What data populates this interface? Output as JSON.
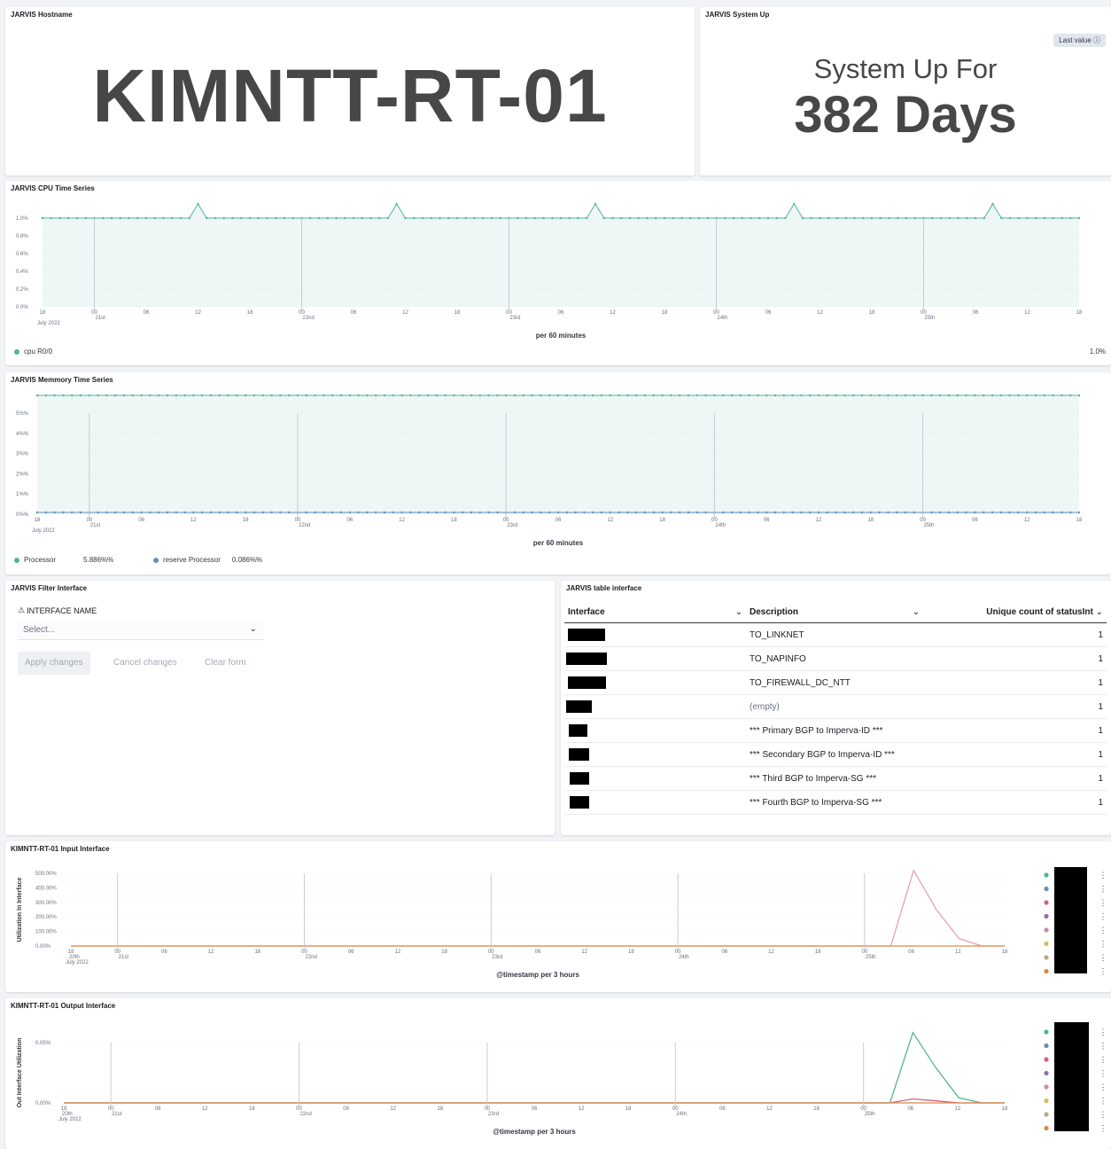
{
  "hostname_panel": {
    "title": "JARVIS Hostname",
    "value": "KIMNTT-RT-01"
  },
  "uptime_panel": {
    "title": "JARVIS System Up",
    "badge": "Last value",
    "label": "System Up For",
    "value": "382 Days"
  },
  "cpu_panel": {
    "title": "JARVIS CPU Time Series",
    "xlabel": "per 60 minutes",
    "y_ticks": [
      "1.0%",
      "0.8%",
      "0.6%",
      "0.4%",
      "0.2%",
      "0.0%"
    ],
    "x_ticks": [
      "18",
      "00",
      "06",
      "12",
      "18",
      "00",
      "06",
      "12",
      "18",
      "00",
      "06",
      "12",
      "18",
      "00",
      "06",
      "12",
      "18",
      "00",
      "06",
      "12",
      "18"
    ],
    "x_subticks": [
      "21st",
      "22nd",
      "23rd",
      "24th",
      "25th"
    ],
    "x_month": "July 2022",
    "legend_name": "cpu R0/0",
    "legend_value": "1.0%"
  },
  "mem_panel": {
    "title": "JARVIS Memmory Time Series",
    "xlabel": "per 60 minutes",
    "y_ticks": [
      "5%%",
      "4%%",
      "3%%",
      "2%%",
      "1%%",
      "0%%"
    ],
    "x_ticks": [
      "18",
      "00",
      "06",
      "12",
      "18",
      "00",
      "06",
      "12",
      "18",
      "00",
      "06",
      "12",
      "18",
      "00",
      "06",
      "12",
      "18",
      "00",
      "06",
      "12",
      "18"
    ],
    "x_subticks": [
      "21st",
      "22nd",
      "23rd",
      "24th",
      "25th"
    ],
    "x_month": "July 2022",
    "legend": [
      {
        "name": "Processor",
        "value": "5.886%%",
        "color": "#54b399"
      },
      {
        "name": "reserve Processor",
        "value": "0.086%%",
        "color": "#6092c0"
      }
    ]
  },
  "filter_panel": {
    "title": "JARVIS Filter Interface",
    "field_label": "INTERFACE NAME",
    "placeholder": "Select...",
    "apply": "Apply changes",
    "cancel": "Cancel changes",
    "clear": "Clear form"
  },
  "table_panel": {
    "title": "JARVIS table interface",
    "headers": [
      "Interface",
      "Description",
      "Unique count of statusInt"
    ],
    "rows": [
      {
        "description": "TO_LINKNET",
        "count": "1"
      },
      {
        "description": "TO_NAPINFO",
        "count": "1"
      },
      {
        "description": "TO_FIREWALL_DC_NTT",
        "count": "1"
      },
      {
        "description": "(empty)",
        "count": "1"
      },
      {
        "description": "*** Primary BGP to Imperva-ID ***",
        "count": "1"
      },
      {
        "description": "*** Secondary BGP to Imperva-ID ***",
        "count": "1"
      },
      {
        "description": "*** Third BGP to Imperva-SG ***",
        "count": "1"
      },
      {
        "description": "*** Fourth BGP to Imperva-SG ***",
        "count": "1"
      }
    ]
  },
  "input_panel": {
    "title": "KIMNTT-RT-01 Input Interface",
    "ylabel": "Utilization In Interface",
    "xlabel": "@timestamp per 3 hours",
    "y_ticks": [
      "500.00%",
      "400.00%",
      "300.00%",
      "200.00%",
      "100.00%",
      "0.00%"
    ],
    "x_ticks": [
      "18",
      "00",
      "06",
      "12",
      "18",
      "00",
      "06",
      "12",
      "18",
      "00",
      "06",
      "12",
      "18",
      "00",
      "06",
      "12",
      "18",
      "00",
      "06",
      "12",
      "18"
    ],
    "x_subticks": [
      "20th",
      "21st",
      "22nd",
      "23rd",
      "24th",
      "25th"
    ],
    "x_month": "July 2022",
    "legend_colors": [
      "#54b399",
      "#6092c0",
      "#d36086",
      "#9170b8",
      "#ca8eae",
      "#d6bf57",
      "#b9a888",
      "#da8b45"
    ]
  },
  "output_panel": {
    "title": "KIMNTT-RT-01 Output Interface",
    "ylabel": "Out Interface Utilization",
    "xlabel": "@timestamp per 3 hours",
    "y_ticks": [
      "0.05%",
      "0.00%"
    ],
    "x_ticks": [
      "18",
      "00",
      "06",
      "12",
      "18",
      "00",
      "06",
      "12",
      "18",
      "00",
      "06",
      "12",
      "18",
      "00",
      "06",
      "12",
      "18",
      "00",
      "06",
      "12",
      "18"
    ],
    "x_subticks": [
      "20th",
      "21st",
      "22nd",
      "23rd",
      "24th",
      "25th"
    ],
    "x_month": "July 2022",
    "legend_colors": [
      "#54b399",
      "#6092c0",
      "#d36086",
      "#9170b8",
      "#ca8eae",
      "#d6bf57",
      "#b9a888",
      "#da8b45"
    ]
  },
  "chart_data": [
    {
      "type": "area",
      "title": "JARVIS CPU Time Series",
      "xlabel": "per 60 minutes",
      "ylim": [
        0,
        1.0
      ],
      "series": [
        {
          "name": "cpu R0/0",
          "baseline": 1.0,
          "peaks": [
            2.0,
            2.0,
            2.0,
            2.0,
            2.0
          ]
        }
      ]
    },
    {
      "type": "area",
      "title": "JARVIS Memmory Time Series",
      "xlabel": "per 60 minutes",
      "ylim": [
        0,
        6
      ],
      "series": [
        {
          "name": "Processor",
          "value": 5.886
        },
        {
          "name": "reserve Processor",
          "value": 0.086
        }
      ]
    },
    {
      "type": "line",
      "title": "KIMNTT-RT-01 Input Interface",
      "ylabel": "Utilization In Interface",
      "xlabel": "@timestamp per 3 hours",
      "ylim": [
        0,
        500
      ],
      "series": [
        {
          "color": "#e8a0b4",
          "tail_values": [
            0,
            0,
            520,
            250,
            50,
            0,
            0
          ]
        },
        {
          "color": "#da8b45",
          "tail_values": [
            0,
            0,
            0,
            0,
            0,
            0,
            0
          ]
        }
      ]
    },
    {
      "type": "line",
      "title": "KIMNTT-RT-01 Output Interface",
      "ylabel": "Out Interface Utilization",
      "xlabel": "@timestamp per 3 hours",
      "ylim": [
        0,
        0.06
      ],
      "series": [
        {
          "color": "#54b399",
          "tail_values": [
            0,
            0,
            0.07,
            0.035,
            0.005,
            0,
            0
          ]
        },
        {
          "color": "#d36086",
          "tail_values": [
            0,
            0,
            0.004,
            0.002,
            0,
            0,
            0
          ]
        },
        {
          "color": "#da8b45",
          "tail_values": [
            0,
            0,
            0,
            0,
            0,
            0,
            0
          ]
        }
      ]
    }
  ]
}
